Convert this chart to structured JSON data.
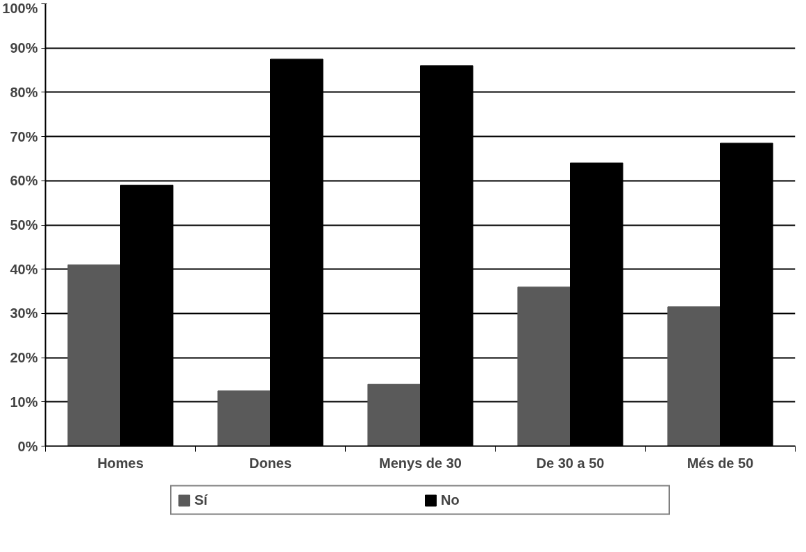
{
  "chart_data": {
    "type": "bar",
    "categories": [
      "Homes",
      "Dones",
      "Menys de 30",
      "De 30 a 50",
      "Més de 50"
    ],
    "series": [
      {
        "name": "Sí",
        "color": "#5a5a5a",
        "values": [
          41,
          12.5,
          14,
          36,
          31.5
        ]
      },
      {
        "name": "No",
        "color": "#000000",
        "values": [
          59,
          87.5,
          86,
          64,
          68.5
        ]
      }
    ],
    "ylim": [
      0,
      100
    ],
    "yticks": [
      {
        "value": 0,
        "label": "0%"
      },
      {
        "value": 10,
        "label": "10%"
      },
      {
        "value": 20,
        "label": "20%"
      },
      {
        "value": 30,
        "label": "30%"
      },
      {
        "value": 40,
        "label": "40%"
      },
      {
        "value": 50,
        "label": "50%"
      },
      {
        "value": 60,
        "label": "60%"
      },
      {
        "value": 70,
        "label": "70%"
      },
      {
        "value": 80,
        "label": "80%"
      },
      {
        "value": 90,
        "label": "90%"
      },
      {
        "value": 100,
        "label": "100%"
      }
    ],
    "grid": "y",
    "legend": "bottom"
  }
}
